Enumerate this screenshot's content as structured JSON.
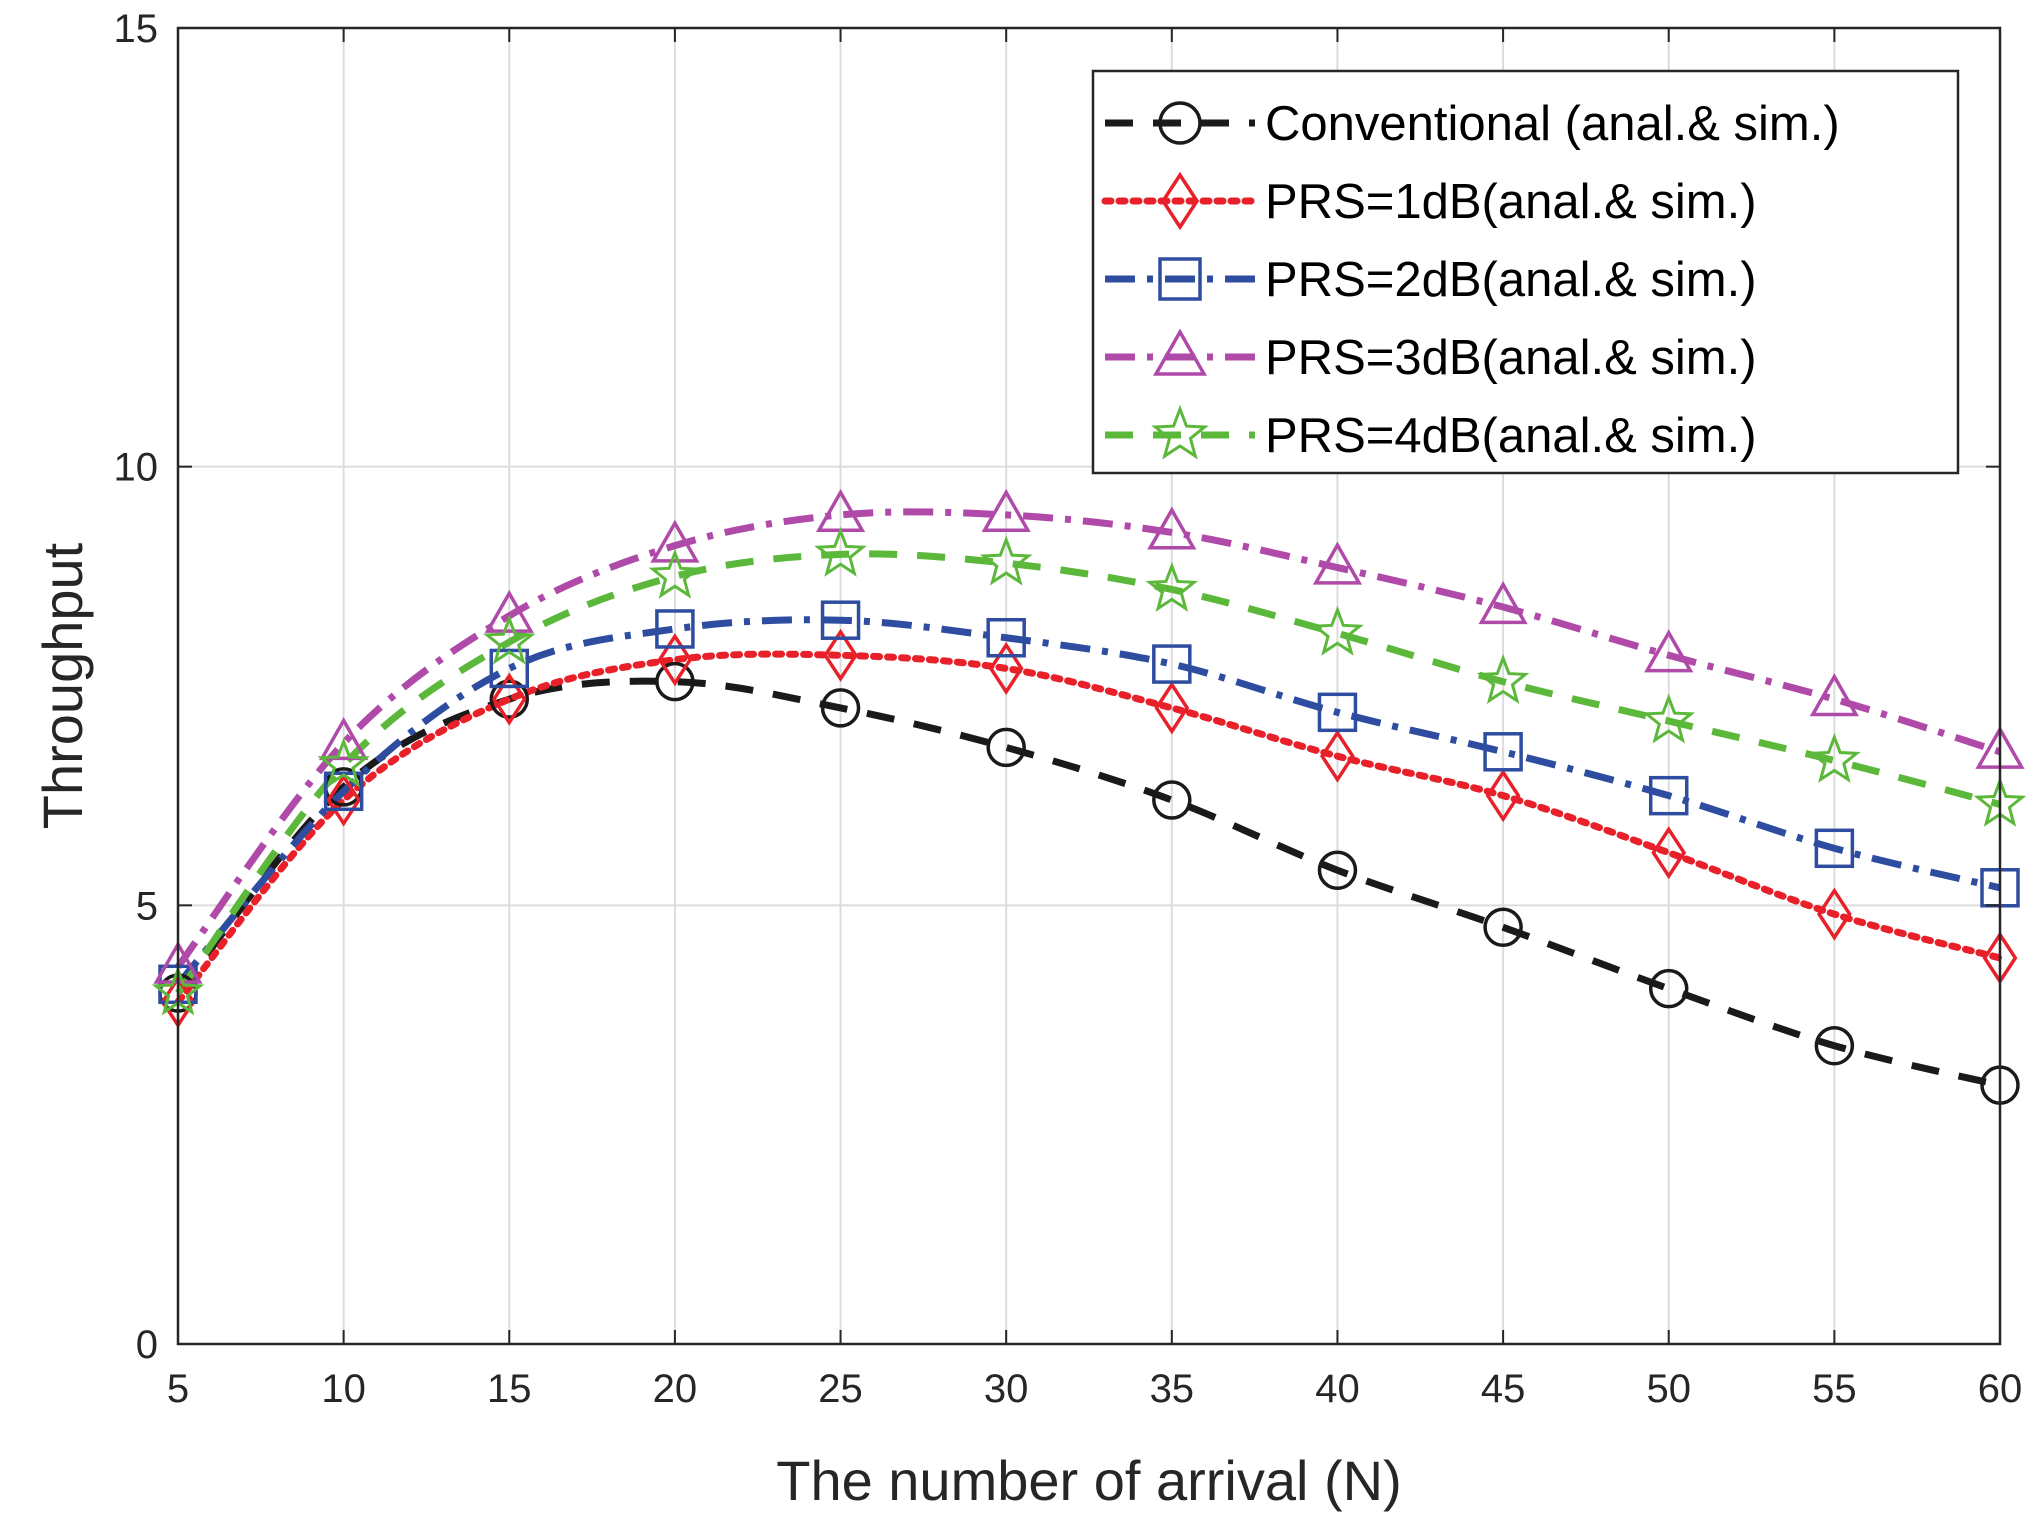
{
  "chart_data": {
    "type": "line",
    "title": "",
    "xlabel": "The number of arrival (N)",
    "ylabel": "Throughput",
    "xlim": [
      5,
      60
    ],
    "ylim": [
      0,
      15
    ],
    "x_ticks": [
      "5",
      "10",
      "15",
      "20",
      "25",
      "30",
      "35",
      "40",
      "45",
      "50",
      "55",
      "60"
    ],
    "y_ticks": [
      "0",
      "5",
      "10",
      "15"
    ],
    "grid": true,
    "legend_position": "top-right",
    "x": [
      5,
      10,
      15,
      20,
      25,
      30,
      35,
      40,
      45,
      50,
      55,
      60
    ],
    "series": [
      {
        "name": "Conventional (anal.& sim.)",
        "color": "#1a1a1a",
        "marker": "circle",
        "line_style": "dashed",
        "values": [
          4.0,
          6.35,
          7.35,
          7.55,
          7.25,
          6.8,
          6.2,
          5.4,
          4.75,
          4.05,
          3.4,
          2.95
        ]
      },
      {
        "name": "PRS=1dB(anal.& sim.)",
        "color": "#e8202a",
        "marker": "diamond",
        "line_style": "dotted",
        "values": [
          3.9,
          6.2,
          7.35,
          7.8,
          7.85,
          7.7,
          7.25,
          6.7,
          6.25,
          5.6,
          4.9,
          4.4
        ]
      },
      {
        "name": "PRS=2dB(anal.& sim.)",
        "color": "#2e4da0",
        "marker": "square",
        "line_style": "dashdot",
        "values": [
          4.1,
          6.3,
          7.7,
          8.15,
          8.25,
          8.05,
          7.75,
          7.2,
          6.75,
          6.25,
          5.65,
          5.2
        ]
      },
      {
        "name": "PRS=3dB(anal.& sim.)",
        "color": "#b04aa8",
        "marker": "triangle",
        "line_style": "dashdot",
        "values": [
          4.3,
          6.85,
          8.3,
          9.1,
          9.45,
          9.45,
          9.25,
          8.85,
          8.4,
          7.85,
          7.35,
          6.75
        ]
      },
      {
        "name": "PRS=4dB(anal.& sim.)",
        "color": "#5cb83a",
        "marker": "star",
        "line_style": "dashed",
        "values": [
          4.0,
          6.6,
          8.0,
          8.75,
          9.0,
          8.9,
          8.6,
          8.1,
          7.55,
          7.1,
          6.65,
          6.15
        ]
      }
    ]
  }
}
